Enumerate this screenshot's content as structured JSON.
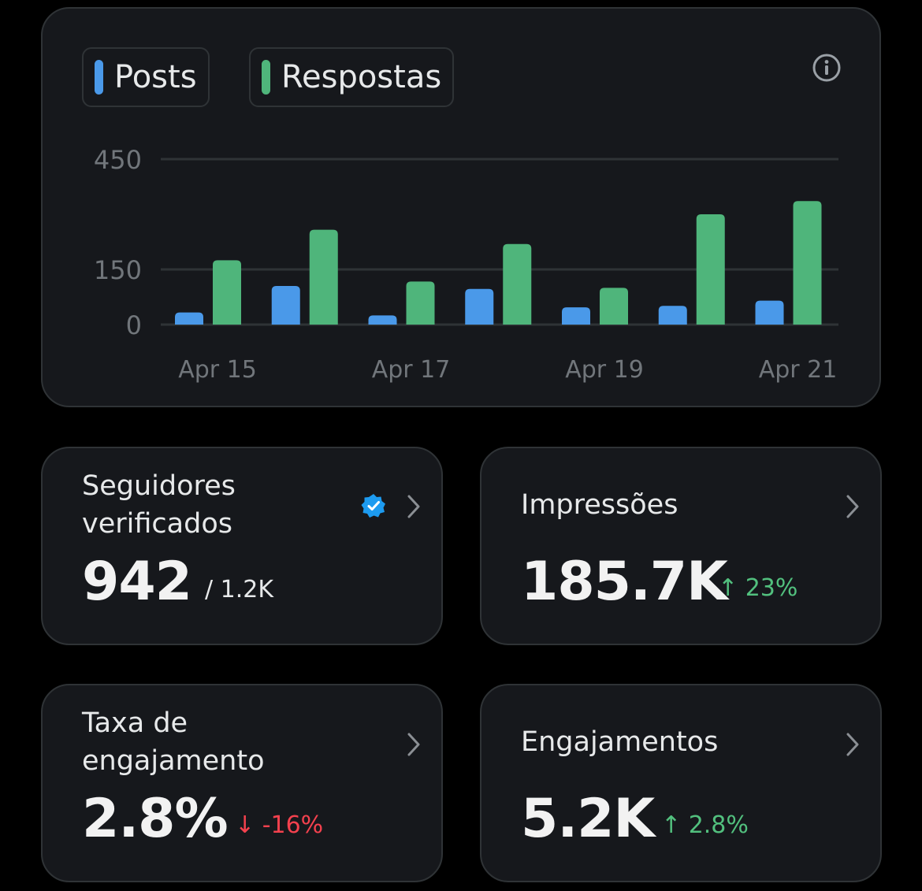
{
  "colors": {
    "posts": "#4a99e9",
    "respostas": "#4fb57b",
    "background": "#000000",
    "card": "#16181c",
    "border": "#2f3336",
    "up": "#52c07e",
    "down": "#f4414e",
    "verified": "#1d9bf0"
  },
  "chart": {
    "info_icon": "info-icon",
    "legend": [
      {
        "label": "Posts"
      },
      {
        "label": "Respostas"
      }
    ]
  },
  "chart_data": {
    "type": "bar",
    "categories": [
      "Apr 15",
      "Apr 16",
      "Apr 17",
      "Apr 18",
      "Apr 19",
      "Apr 20",
      "Apr 21"
    ],
    "x_tick_labels": [
      "Apr 15",
      "Apr 17",
      "Apr 19",
      "Apr 21"
    ],
    "series": [
      {
        "name": "Posts",
        "values": [
          33,
          105,
          25,
          97,
          47,
          51,
          65
        ]
      },
      {
        "name": "Respostas",
        "values": [
          175,
          258,
          117,
          219,
          100,
          300,
          336
        ]
      }
    ],
    "y_ticks": [
      0,
      150,
      450
    ],
    "ylim": [
      0,
      450
    ],
    "grid": true,
    "legend_position": "top-left"
  },
  "stats": [
    {
      "title": "Seguidores\nverificados",
      "value": "942",
      "sub": "/ 1.2K",
      "icon": "verified-badge-icon"
    },
    {
      "title": "Impressões",
      "value": "185.7K",
      "delta": "23%",
      "direction": "up"
    },
    {
      "title": "Taxa de\nengajamento",
      "value": "2.8%",
      "delta": "-16%",
      "direction": "down"
    },
    {
      "title": "Engajamentos",
      "value": "5.2K",
      "delta": "2.8%",
      "direction": "up"
    }
  ],
  "arrows": {
    "up": "↑",
    "down": "↓"
  }
}
